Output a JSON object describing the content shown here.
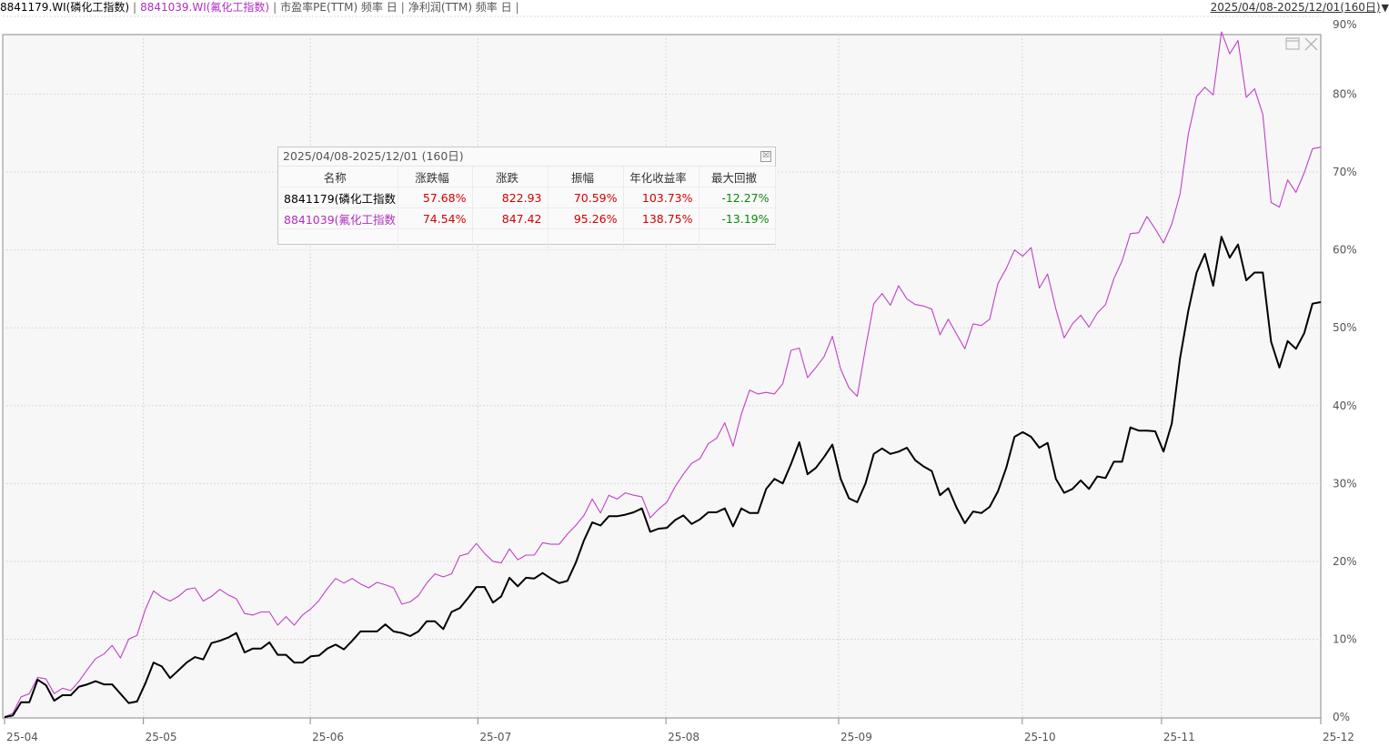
{
  "header": {
    "series1_label": "8841179.WI(磷化工指数)",
    "series2_label": "8841039.WI(氟化工指数)",
    "indicator1": "市盈率PE(TTM) 频率 日",
    "indicator2": "净利润(TTM) 频率 日",
    "separator": "|",
    "date_range": "2025/04/08-2025/12/01(160日)",
    "dropdown_glyph": "▼"
  },
  "colors": {
    "series1": "#000000",
    "series2": "#c040c8",
    "grid": "#d8d8d8",
    "plot_bg": "#f7f7f7",
    "up": "#d40000",
    "down": "#0a8a0a"
  },
  "stats_panel": {
    "title": "2025/04/08-2025/12/01 (160日)",
    "close_glyph": "☒",
    "columns": [
      "名称",
      "涨跌幅",
      "涨跌",
      "振幅",
      "年化收益率",
      "最大回撤"
    ],
    "rows": [
      {
        "name": "8841179(磷化工指数",
        "change_pct": "57.68%",
        "change": "822.93",
        "amplitude": "70.59%",
        "annual_return": "103.73%",
        "max_drawdown": "-12.27%"
      },
      {
        "name": "8841039(氟化工指数",
        "change_pct": "74.54%",
        "change": "847.42",
        "amplitude": "95.26%",
        "annual_return": "138.75%",
        "max_drawdown": "-13.19%"
      }
    ]
  },
  "chart_data": {
    "type": "line",
    "x_ticks": [
      "25-04",
      "25-05",
      "25-06",
      "25-07",
      "25-08",
      "25-09",
      "25-10",
      "25-11",
      "25-12"
    ],
    "y_ticks": [
      "0%",
      "10%",
      "20%",
      "30%",
      "40%",
      "50%",
      "60%",
      "70%",
      "80%",
      "90%"
    ],
    "ylim": [
      0,
      90
    ],
    "grid": true,
    "series": [
      {
        "name": "8841179.WI(磷化工指数)",
        "values": [
          0,
          0.2,
          1.9,
          1.9,
          4.8,
          4.1,
          2.1,
          2.8,
          2.8,
          3.9,
          4.2,
          4.6,
          4.2,
          4.2,
          3.0,
          1.8,
          2.0,
          4.3,
          7.0,
          6.5,
          5.0,
          6.0,
          7.0,
          7.7,
          7.4,
          9.5,
          9.8,
          10.2,
          10.8,
          8.3,
          8.8,
          8.8,
          9.6,
          8.0,
          8.0,
          7.0,
          7.0,
          7.8,
          7.9,
          8.8,
          9.3,
          8.7,
          9.8,
          11.0,
          11.0,
          11.0,
          11.9,
          11.0,
          10.8,
          10.4,
          11.0,
          12.3,
          12.3,
          11.3,
          13.5,
          14.0,
          15.3,
          16.7,
          16.7,
          14.7,
          15.5,
          17.9,
          16.8,
          17.9,
          17.8,
          18.5,
          17.8,
          17.2,
          17.5,
          19.8,
          22.7,
          25.0,
          24.6,
          25.8,
          25.8,
          26.0,
          26.3,
          26.8,
          23.8,
          24.2,
          24.3,
          25.3,
          25.9,
          24.8,
          25.4,
          26.3,
          26.3,
          26.8,
          24.5,
          26.8,
          26.2,
          26.2,
          29.3,
          30.6,
          30.0,
          32.5,
          35.3,
          31.2,
          32.0,
          33.4,
          35.0,
          30.6,
          28.1,
          27.6,
          30.0,
          33.8,
          34.5,
          33.8,
          34.1,
          34.6,
          33.0,
          32.2,
          31.6,
          28.5,
          29.4,
          26.9,
          24.9,
          26.4,
          26.2,
          27.0,
          29.0,
          32.0,
          36.0,
          36.6,
          36.0,
          34.6,
          35.2,
          30.6,
          28.8,
          29.3,
          30.4,
          29.3,
          30.9,
          30.7,
          32.8,
          32.8,
          37.2,
          36.8,
          36.8,
          36.7,
          34.1,
          37.7,
          46.1,
          52.2,
          57.1,
          59.5,
          55.4,
          61.7,
          59.0,
          60.7,
          56.1,
          57.1,
          57.1,
          48.2,
          44.9,
          48.3,
          47.3,
          49.3,
          53.1,
          53.3
        ]
      },
      {
        "name": "8841039.WI(氟化工指数)",
        "values": [
          0,
          0.5,
          2.6,
          3.0,
          5.1,
          4.9,
          3.0,
          3.7,
          3.4,
          4.6,
          6.1,
          7.5,
          8.1,
          9.2,
          7.6,
          10.0,
          10.5,
          13.8,
          16.2,
          15.4,
          14.9,
          15.5,
          16.4,
          16.6,
          14.9,
          15.5,
          16.4,
          15.7,
          15.2,
          13.3,
          13.1,
          13.5,
          13.5,
          11.8,
          12.9,
          11.8,
          13.1,
          13.9,
          15.0,
          16.5,
          17.8,
          17.2,
          17.8,
          17.1,
          16.6,
          17.3,
          17.0,
          16.6,
          14.5,
          14.8,
          15.6,
          17.2,
          18.4,
          18.0,
          18.4,
          20.7,
          21.0,
          22.3,
          21.0,
          20.0,
          19.8,
          21.6,
          20.2,
          20.8,
          20.8,
          22.4,
          22.2,
          22.2,
          23.5,
          24.6,
          25.9,
          28.0,
          26.2,
          28.5,
          28.0,
          28.8,
          28.5,
          28.3,
          25.6,
          26.7,
          27.6,
          29.6,
          31.2,
          32.6,
          33.2,
          35.1,
          35.8,
          37.8,
          34.8,
          38.9,
          42.0,
          41.5,
          41.7,
          41.5,
          42.8,
          47.1,
          47.4,
          43.6,
          44.9,
          46.3,
          48.9,
          44.7,
          42.3,
          41.2,
          47.4,
          53.1,
          54.4,
          52.9,
          55.4,
          53.7,
          53.0,
          52.8,
          52.4,
          49.1,
          51.1,
          49.2,
          47.3,
          50.5,
          50.3,
          51.1,
          55.7,
          57.6,
          60.0,
          59.2,
          60.3,
          55.1,
          56.9,
          52.4,
          48.7,
          50.5,
          51.6,
          50.1,
          51.9,
          53.0,
          56.3,
          58.6,
          62.1,
          62.2,
          64.3,
          62.7,
          60.9,
          63.3,
          67.2,
          74.9,
          79.7,
          80.9,
          79.9,
          88.0,
          85.2,
          86.9,
          79.6,
          80.7,
          77.4,
          66.1,
          65.5,
          69.0,
          67.4,
          69.9,
          73.0,
          73.2
        ]
      }
    ]
  }
}
